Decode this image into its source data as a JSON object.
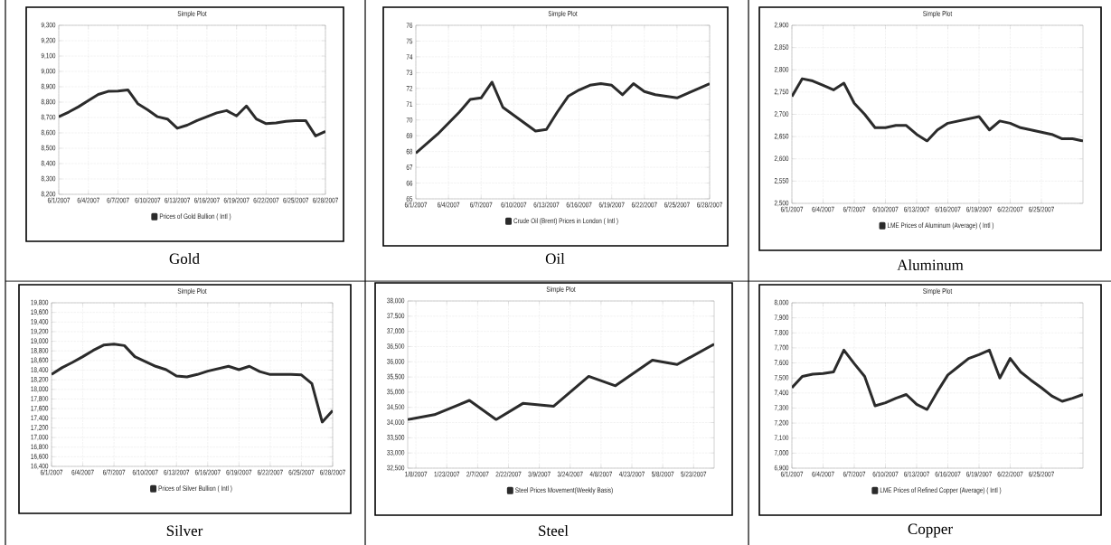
{
  "chart_data": [
    {
      "type": "line",
      "title": "Simple Plot",
      "grid": true,
      "legend": "bottom",
      "annotations": [
        "Gold"
      ],
      "x": [
        "2007-06-01",
        "2007-06-02",
        "2007-06-03",
        "2007-06-04",
        "2007-06-05",
        "2007-06-06",
        "2007-06-07",
        "2007-06-08",
        "2007-06-09",
        "2007-06-10",
        "2007-06-11",
        "2007-06-12",
        "2007-06-13",
        "2007-06-14",
        "2007-06-15",
        "2007-06-16",
        "2007-06-17",
        "2007-06-18",
        "2007-06-19",
        "2007-06-20",
        "2007-06-21",
        "2007-06-22",
        "2007-06-23",
        "2007-06-24",
        "2007-06-25",
        "2007-06-26",
        "2007-06-27",
        "2007-06-28"
      ],
      "series": [
        {
          "name": "Prices of Gold Bullion ( Intl )",
          "color": "#2b2b2b",
          "values": [
            8705,
            8735,
            8770,
            8810,
            8850,
            8870,
            8872,
            8880,
            8790,
            8750,
            8705,
            8690,
            8630,
            8650,
            8680,
            8705,
            8730,
            8745,
            8710,
            8775,
            8690,
            8660,
            8665,
            8675,
            8680,
            8680,
            8580,
            8610
          ]
        }
      ],
      "xlim": [
        "2007-06-01",
        "2007-06-28"
      ],
      "ylim": [
        8200,
        9300
      ],
      "xticks": [
        {
          "value": "2007-06-01",
          "label": "6/1/2007"
        },
        {
          "value": "2007-06-04",
          "label": "6/4/2007"
        },
        {
          "value": "2007-06-07",
          "label": "6/7/2007"
        },
        {
          "value": "2007-06-10",
          "label": "6/10/2007"
        },
        {
          "value": "2007-06-13",
          "label": "6/13/2007"
        },
        {
          "value": "2007-06-16",
          "label": "6/16/2007"
        },
        {
          "value": "2007-06-19",
          "label": "6/19/2007"
        },
        {
          "value": "2007-06-22",
          "label": "6/22/2007"
        },
        {
          "value": "2007-06-25",
          "label": "6/25/2007"
        },
        {
          "value": "2007-06-28",
          "label": "6/28/2007"
        }
      ],
      "yticks": [
        {
          "value": 8200,
          "label": "8,200"
        },
        {
          "value": 8300,
          "label": "8,300"
        },
        {
          "value": 8400,
          "label": "8,400"
        },
        {
          "value": 8500,
          "label": "8,500"
        },
        {
          "value": 8600,
          "label": "8,600"
        },
        {
          "value": 8700,
          "label": "8,700"
        },
        {
          "value": 8800,
          "label": "8,800"
        },
        {
          "value": 8900,
          "label": "8,900"
        },
        {
          "value": 9000,
          "label": "9,000"
        },
        {
          "value": 9100,
          "label": "9,100"
        },
        {
          "value": 9200,
          "label": "9,200"
        },
        {
          "value": 9300,
          "label": "9,300"
        }
      ]
    },
    {
      "type": "line",
      "title": "Simple Plot",
      "grid": true,
      "legend": "bottom",
      "annotations": [
        "Oil"
      ],
      "x": [
        "2007-06-01",
        "2007-06-02",
        "2007-06-03",
        "2007-06-04",
        "2007-06-05",
        "2007-06-06",
        "2007-06-07",
        "2007-06-08",
        "2007-06-09",
        "2007-06-10",
        "2007-06-11",
        "2007-06-12",
        "2007-06-13",
        "2007-06-14",
        "2007-06-15",
        "2007-06-16",
        "2007-06-17",
        "2007-06-18",
        "2007-06-19",
        "2007-06-20",
        "2007-06-21",
        "2007-06-22",
        "2007-06-23",
        "2007-06-24",
        "2007-06-25",
        "2007-06-26",
        "2007-06-27",
        "2007-06-28"
      ],
      "series": [
        {
          "name": "Crude Oil (Brent) Prices in London ( Intl )",
          "color": "#2b2b2b",
          "values": [
            67.9,
            68.5,
            69.1,
            69.8,
            70.5,
            71.3,
            71.4,
            72.4,
            70.8,
            70.3,
            69.8,
            69.3,
            69.4,
            70.5,
            71.5,
            71.9,
            72.2,
            72.3,
            72.2,
            71.6,
            72.3,
            71.8,
            71.6,
            71.5,
            71.4,
            71.7,
            72.0,
            72.3
          ]
        }
      ],
      "xlim": [
        "2007-06-01",
        "2007-06-28"
      ],
      "ylim": [
        65,
        76
      ],
      "xticks": [
        {
          "value": "2007-06-01",
          "label": "6/1/2007"
        },
        {
          "value": "2007-06-04",
          "label": "6/4/2007"
        },
        {
          "value": "2007-06-07",
          "label": "6/7/2007"
        },
        {
          "value": "2007-06-10",
          "label": "6/10/2007"
        },
        {
          "value": "2007-06-13",
          "label": "6/13/2007"
        },
        {
          "value": "2007-06-16",
          "label": "6/16/2007"
        },
        {
          "value": "2007-06-19",
          "label": "6/19/2007"
        },
        {
          "value": "2007-06-22",
          "label": "6/22/2007"
        },
        {
          "value": "2007-06-25",
          "label": "6/25/2007"
        },
        {
          "value": "2007-06-28",
          "label": "6/28/2007"
        }
      ],
      "yticks": [
        65,
        66,
        67,
        68,
        69,
        70,
        71,
        72,
        73,
        74,
        75,
        76
      ]
    },
    {
      "type": "line",
      "title": "Simple Plot",
      "grid": true,
      "legend": "bottom",
      "annotations": [
        "Aluminum"
      ],
      "x": [
        "2007-06-01",
        "2007-06-02",
        "2007-06-03",
        "2007-06-04",
        "2007-06-05",
        "2007-06-06",
        "2007-06-07",
        "2007-06-08",
        "2007-06-09",
        "2007-06-10",
        "2007-06-11",
        "2007-06-12",
        "2007-06-13",
        "2007-06-14",
        "2007-06-15",
        "2007-06-16",
        "2007-06-17",
        "2007-06-18",
        "2007-06-19",
        "2007-06-20",
        "2007-06-21",
        "2007-06-22",
        "2007-06-23",
        "2007-06-24",
        "2007-06-25",
        "2007-06-26",
        "2007-06-27",
        "2007-06-28",
        "2007-06-29"
      ],
      "series": [
        {
          "name": "LME Prices of Aluminum (Average) ( Intl )",
          "color": "#2b2b2b",
          "values": [
            2740,
            2780,
            2775,
            2765,
            2755,
            2770,
            2725,
            2700,
            2670,
            2670,
            2675,
            2675,
            2655,
            2640,
            2665,
            2680,
            2685,
            2690,
            2695,
            2665,
            2685,
            2680,
            2670,
            2665,
            2660,
            2655,
            2645,
            2645,
            2640
          ]
        }
      ],
      "xlim": [
        "2007-06-01",
        "2007-06-29"
      ],
      "ylim": [
        2500,
        2900
      ],
      "xticks": [
        {
          "value": "2007-06-01",
          "label": "6/1/2007"
        },
        {
          "value": "2007-06-04",
          "label": "6/4/2007"
        },
        {
          "value": "2007-06-07",
          "label": "6/7/2007"
        },
        {
          "value": "2007-06-10",
          "label": "6/10/2007"
        },
        {
          "value": "2007-06-13",
          "label": "6/13/2007"
        },
        {
          "value": "2007-06-16",
          "label": "6/16/2007"
        },
        {
          "value": "2007-06-19",
          "label": "6/19/2007"
        },
        {
          "value": "2007-06-22",
          "label": "6/22/2007"
        },
        {
          "value": "2007-06-25",
          "label": "6/25/2007"
        }
      ],
      "yticks": [
        {
          "value": 2500,
          "label": "2,500"
        },
        {
          "value": 2550,
          "label": "2,550"
        },
        {
          "value": 2600,
          "label": "2,600"
        },
        {
          "value": 2650,
          "label": "2,650"
        },
        {
          "value": 2700,
          "label": "2,700"
        },
        {
          "value": 2750,
          "label": "2,750"
        },
        {
          "value": 2800,
          "label": "2,800"
        },
        {
          "value": 2850,
          "label": "2,850"
        },
        {
          "value": 2900,
          "label": "2,900"
        }
      ]
    },
    {
      "type": "line",
      "title": "Simple Plot",
      "grid": true,
      "legend": "bottom",
      "annotations": [
        "Silver"
      ],
      "x": [
        "2007-06-01",
        "2007-06-02",
        "2007-06-03",
        "2007-06-04",
        "2007-06-05",
        "2007-06-06",
        "2007-06-07",
        "2007-06-08",
        "2007-06-09",
        "2007-06-10",
        "2007-06-11",
        "2007-06-12",
        "2007-06-13",
        "2007-06-14",
        "2007-06-15",
        "2007-06-16",
        "2007-06-17",
        "2007-06-18",
        "2007-06-19",
        "2007-06-20",
        "2007-06-21",
        "2007-06-22",
        "2007-06-23",
        "2007-06-24",
        "2007-06-25",
        "2007-06-26",
        "2007-06-27",
        "2007-06-28"
      ],
      "series": [
        {
          "name": "Prices of Silver Bullion ( Intl )",
          "color": "#2b2b2b",
          "values": [
            18310,
            18450,
            18560,
            18680,
            18810,
            18920,
            18940,
            18910,
            18680,
            18580,
            18480,
            18410,
            18280,
            18260,
            18310,
            18380,
            18430,
            18480,
            18410,
            18480,
            18370,
            18310,
            18310,
            18310,
            18300,
            18120,
            17320,
            17560
          ]
        }
      ],
      "xlim": [
        "2007-06-01",
        "2007-06-28"
      ],
      "ylim": [
        16400,
        19800
      ],
      "xticks": [
        {
          "value": "2007-06-01",
          "label": "6/1/2007"
        },
        {
          "value": "2007-06-04",
          "label": "6/4/2007"
        },
        {
          "value": "2007-06-07",
          "label": "6/7/2007"
        },
        {
          "value": "2007-06-10",
          "label": "6/10/2007"
        },
        {
          "value": "2007-06-13",
          "label": "6/13/2007"
        },
        {
          "value": "2007-06-16",
          "label": "6/16/2007"
        },
        {
          "value": "2007-06-19",
          "label": "6/19/2007"
        },
        {
          "value": "2007-06-22",
          "label": "6/22/2007"
        },
        {
          "value": "2007-06-25",
          "label": "6/25/2007"
        },
        {
          "value": "2007-06-28",
          "label": "6/28/2007"
        }
      ],
      "yticks": [
        {
          "value": 16400,
          "label": "16,400"
        },
        {
          "value": 16600,
          "label": "16,600"
        },
        {
          "value": 16800,
          "label": "16,800"
        },
        {
          "value": 17000,
          "label": "17,000"
        },
        {
          "value": 17200,
          "label": "17,200"
        },
        {
          "value": 17400,
          "label": "17,400"
        },
        {
          "value": 17600,
          "label": "17,600"
        },
        {
          "value": 17800,
          "label": "17,800"
        },
        {
          "value": 18000,
          "label": "18,000"
        },
        {
          "value": 18200,
          "label": "18,200"
        },
        {
          "value": 18400,
          "label": "18,400"
        },
        {
          "value": 18600,
          "label": "18,600"
        },
        {
          "value": 18800,
          "label": "18,800"
        },
        {
          "value": 19000,
          "label": "19,000"
        },
        {
          "value": 19200,
          "label": "19,200"
        },
        {
          "value": 19400,
          "label": "19,400"
        },
        {
          "value": 19600,
          "label": "19,600"
        },
        {
          "value": 19800,
          "label": "19,800"
        }
      ]
    },
    {
      "type": "line",
      "title": "Simple Plot",
      "grid": true,
      "legend": "bottom",
      "annotations": [
        "Steel"
      ],
      "x": [
        "2007-01-04",
        "2007-01-17",
        "2007-02-03",
        "2007-02-16",
        "2007-03-01",
        "2007-03-16",
        "2007-04-02",
        "2007-04-15",
        "2007-05-03",
        "2007-05-15",
        "2007-06-02"
      ],
      "series": [
        {
          "name": "Steel Prices Movement(Weekly Basis)",
          "color": "#2b2b2b",
          "values": [
            34100,
            34260,
            34730,
            34100,
            34630,
            34540,
            35520,
            35210,
            36050,
            35910,
            36580
          ]
        }
      ],
      "xlim": [
        "2007-01-04",
        "2007-06-02"
      ],
      "ylim": [
        32500,
        38000
      ],
      "xticks": [
        {
          "value": "2007-01-08",
          "label": "1/8/2007"
        },
        {
          "value": "2007-01-23",
          "label": "1/23/2007"
        },
        {
          "value": "2007-02-07",
          "label": "2/7/2007"
        },
        {
          "value": "2007-02-22",
          "label": "2/22/2007"
        },
        {
          "value": "2007-03-09",
          "label": "3/9/2007"
        },
        {
          "value": "2007-03-24",
          "label": "3/24/2007"
        },
        {
          "value": "2007-04-08",
          "label": "4/8/2007"
        },
        {
          "value": "2007-04-23",
          "label": "4/23/2007"
        },
        {
          "value": "2007-05-08",
          "label": "5/8/2007"
        },
        {
          "value": "2007-05-23",
          "label": "5/23/2007"
        }
      ],
      "yticks": [
        {
          "value": 32500,
          "label": "32,500"
        },
        {
          "value": 33000,
          "label": "33,000"
        },
        {
          "value": 33500,
          "label": "33,500"
        },
        {
          "value": 34000,
          "label": "34,000"
        },
        {
          "value": 34500,
          "label": "34,500"
        },
        {
          "value": 35000,
          "label": "35,000"
        },
        {
          "value": 35500,
          "label": "35,500"
        },
        {
          "value": 36000,
          "label": "36,000"
        },
        {
          "value": 36500,
          "label": "36,500"
        },
        {
          "value": 37000,
          "label": "37,000"
        },
        {
          "value": 37500,
          "label": "37,500"
        },
        {
          "value": 38000,
          "label": "38,000"
        }
      ]
    },
    {
      "type": "line",
      "title": "Simple Plot",
      "grid": true,
      "legend": "bottom",
      "annotations": [
        "Copper"
      ],
      "x": [
        "2007-06-01",
        "2007-06-02",
        "2007-06-03",
        "2007-06-04",
        "2007-06-05",
        "2007-06-06",
        "2007-06-07",
        "2007-06-08",
        "2007-06-09",
        "2007-06-10",
        "2007-06-11",
        "2007-06-12",
        "2007-06-13",
        "2007-06-14",
        "2007-06-15",
        "2007-06-16",
        "2007-06-17",
        "2007-06-18",
        "2007-06-19",
        "2007-06-20",
        "2007-06-21",
        "2007-06-22",
        "2007-06-23",
        "2007-06-24",
        "2007-06-25",
        "2007-06-26",
        "2007-06-27",
        "2007-06-28",
        "2007-06-29"
      ],
      "series": [
        {
          "name": "LME Prices of Refined Copper (Average) ( Intl )",
          "color": "#2b2b2b",
          "values": [
            7435,
            7510,
            7525,
            7530,
            7540,
            7685,
            7595,
            7510,
            7315,
            7335,
            7365,
            7390,
            7325,
            7290,
            7410,
            7520,
            7575,
            7630,
            7655,
            7685,
            7500,
            7630,
            7540,
            7485,
            7435,
            7380,
            7345,
            7365,
            7390
          ]
        }
      ],
      "xlim": [
        "2007-06-01",
        "2007-06-29"
      ],
      "ylim": [
        6900,
        8000
      ],
      "xticks": [
        {
          "value": "2007-06-01",
          "label": "6/1/2007"
        },
        {
          "value": "2007-06-04",
          "label": "6/4/2007"
        },
        {
          "value": "2007-06-07",
          "label": "6/7/2007"
        },
        {
          "value": "2007-06-10",
          "label": "6/10/2007"
        },
        {
          "value": "2007-06-13",
          "label": "6/13/2007"
        },
        {
          "value": "2007-06-16",
          "label": "6/16/2007"
        },
        {
          "value": "2007-06-19",
          "label": "6/19/2007"
        },
        {
          "value": "2007-06-22",
          "label": "6/22/2007"
        },
        {
          "value": "2007-06-25",
          "label": "6/25/2007"
        }
      ],
      "yticks": [
        {
          "value": 6900,
          "label": "6,900"
        },
        {
          "value": 7000,
          "label": "7,000"
        },
        {
          "value": 7100,
          "label": "7,100"
        },
        {
          "value": 7200,
          "label": "7,200"
        },
        {
          "value": 7300,
          "label": "7,300"
        },
        {
          "value": 7400,
          "label": "7,400"
        },
        {
          "value": 7500,
          "label": "7,500"
        },
        {
          "value": 7600,
          "label": "7,600"
        },
        {
          "value": 7700,
          "label": "7,700"
        },
        {
          "value": 7800,
          "label": "7,800"
        },
        {
          "value": 7900,
          "label": "7,900"
        },
        {
          "value": 8000,
          "label": "8,000"
        }
      ]
    }
  ]
}
